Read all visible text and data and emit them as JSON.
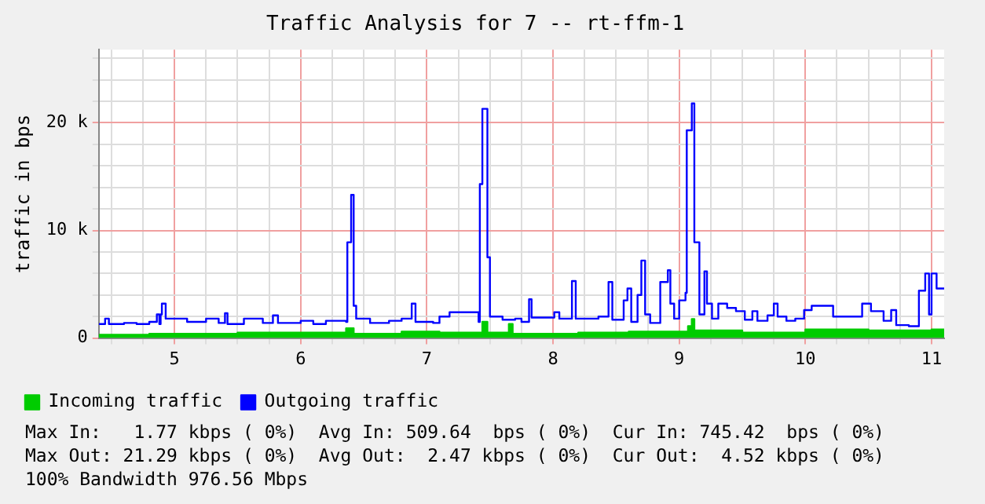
{
  "chart_data": {
    "type": "line",
    "title": "Traffic Analysis for 7 -- rt-ffm-1",
    "ylabel": "traffic in bps",
    "xlim": [
      4.4,
      11.1
    ],
    "ylim": [
      0,
      26800
    ],
    "xticks": [
      {
        "value": 4.5,
        "label": null
      },
      {
        "value": 4.75,
        "label": null
      },
      5,
      {
        "value": 5.25,
        "label": null
      },
      {
        "value": 5.5,
        "label": null
      },
      {
        "value": 5.75,
        "label": null
      },
      6,
      {
        "value": 6.25,
        "label": null
      },
      {
        "value": 6.5,
        "label": null
      },
      {
        "value": 6.75,
        "label": null
      },
      7,
      {
        "value": 7.25,
        "label": null
      },
      {
        "value": 7.5,
        "label": null
      },
      {
        "value": 7.75,
        "label": null
      },
      8,
      {
        "value": 8.25,
        "label": null
      },
      {
        "value": 8.5,
        "label": null
      },
      {
        "value": 8.75,
        "label": null
      },
      9,
      {
        "value": 9.25,
        "label": null
      },
      {
        "value": 9.5,
        "label": null
      },
      {
        "value": 9.75,
        "label": null
      },
      10,
      {
        "value": 10.25,
        "label": null
      },
      {
        "value": 10.5,
        "label": null
      },
      {
        "value": 10.75,
        "label": null
      },
      11
    ],
    "yticks": [
      0,
      {
        "value": 2000,
        "label": null
      },
      {
        "value": 4000,
        "label": null
      },
      {
        "value": 6000,
        "label": null
      },
      {
        "value": 8000,
        "label": null
      },
      {
        "value": 10000,
        "label": "10 k"
      },
      {
        "value": 12000,
        "label": null
      },
      {
        "value": 14000,
        "label": null
      },
      {
        "value": 16000,
        "label": null
      },
      {
        "value": 18000,
        "label": null
      },
      {
        "value": 20000,
        "label": "20 k"
      },
      {
        "value": 22000,
        "label": null
      },
      {
        "value": 24000,
        "label": null
      },
      {
        "value": 26000,
        "label": null
      }
    ],
    "grid": true,
    "legend": "bottom",
    "series": [
      {
        "name": "Incoming traffic",
        "type": "area",
        "color": "#00cc00",
        "x": [
          4.4,
          4.8,
          5.2,
          5.5,
          6.0,
          6.36,
          6.42,
          6.8,
          7.1,
          7.42,
          7.44,
          7.48,
          7.65,
          7.68,
          8.2,
          8.6,
          9.07,
          9.1,
          9.12,
          9.5,
          10.0,
          10.5,
          11.0,
          11.1
        ],
        "values": [
          300,
          400,
          400,
          500,
          500,
          900,
          400,
          600,
          500,
          500,
          1500,
          500,
          1300,
          400,
          500,
          600,
          1100,
          1770,
          700,
          500,
          800,
          700,
          800,
          600
        ]
      },
      {
        "name": "Outgoing traffic",
        "type": "step",
        "color": "#0000ff",
        "x": [
          4.4,
          4.45,
          4.48,
          4.6,
          4.7,
          4.8,
          4.86,
          4.88,
          4.89,
          4.9,
          4.93,
          5.1,
          5.25,
          5.35,
          5.4,
          5.42,
          5.55,
          5.7,
          5.78,
          5.82,
          6.0,
          6.1,
          6.2,
          6.36,
          6.37,
          6.4,
          6.42,
          6.44,
          6.55,
          6.7,
          6.8,
          6.88,
          6.91,
          7.05,
          7.1,
          7.18,
          7.3,
          7.41,
          7.42,
          7.44,
          7.48,
          7.5,
          7.6,
          7.7,
          7.75,
          7.81,
          7.83,
          8.01,
          8.05,
          8.15,
          8.18,
          8.36,
          8.44,
          8.47,
          8.56,
          8.59,
          8.62,
          8.67,
          8.7,
          8.73,
          8.77,
          8.85,
          8.91,
          8.93,
          8.96,
          9.0,
          9.05,
          9.06,
          9.1,
          9.12,
          9.16,
          9.2,
          9.22,
          9.26,
          9.31,
          9.38,
          9.45,
          9.52,
          9.58,
          9.62,
          9.7,
          9.75,
          9.78,
          9.85,
          9.92,
          9.99,
          10.05,
          10.15,
          10.22,
          10.35,
          10.45,
          10.52,
          10.62,
          10.68,
          10.72,
          10.82,
          10.9,
          10.95,
          10.98,
          11.0,
          11.04,
          11.1
        ],
        "values": [
          1300,
          1800,
          1300,
          1400,
          1300,
          1500,
          2200,
          1300,
          2200,
          3200,
          1800,
          1500,
          1800,
          1400,
          2300,
          1300,
          1800,
          1400,
          2100,
          1400,
          1600,
          1300,
          1600,
          1500,
          8900,
          13300,
          3000,
          1800,
          1400,
          1600,
          1800,
          3200,
          1500,
          1400,
          2000,
          2400,
          2400,
          1500,
          14300,
          21300,
          7500,
          2000,
          1700,
          1800,
          1500,
          3600,
          1900,
          2400,
          1800,
          5300,
          1800,
          2000,
          5200,
          1700,
          3500,
          4600,
          1500,
          4000,
          7200,
          2200,
          1400,
          5200,
          6300,
          3200,
          1800,
          3500,
          4200,
          19300,
          21800,
          8900,
          2200,
          6200,
          3200,
          1800,
          3200,
          2800,
          2500,
          1700,
          2500,
          1600,
          2100,
          3200,
          2000,
          1600,
          1800,
          2600,
          3000,
          3000,
          2000,
          2000,
          3200,
          2500,
          1600,
          2600,
          1200,
          1100,
          4400,
          6000,
          2200,
          6000,
          4600,
          4600
        ]
      }
    ],
    "annotations": [
      "Max In:   1.77 kbps ( 0%)  Avg In: 509.64  bps ( 0%)  Cur In: 745.42  bps ( 0%)",
      "Max Out: 21.29 kbps ( 0%)  Avg Out:  2.47 kbps ( 0%)  Cur Out:  4.52 kbps ( 0%)",
      "100% Bandwidth 976.56 Mbps"
    ]
  }
}
